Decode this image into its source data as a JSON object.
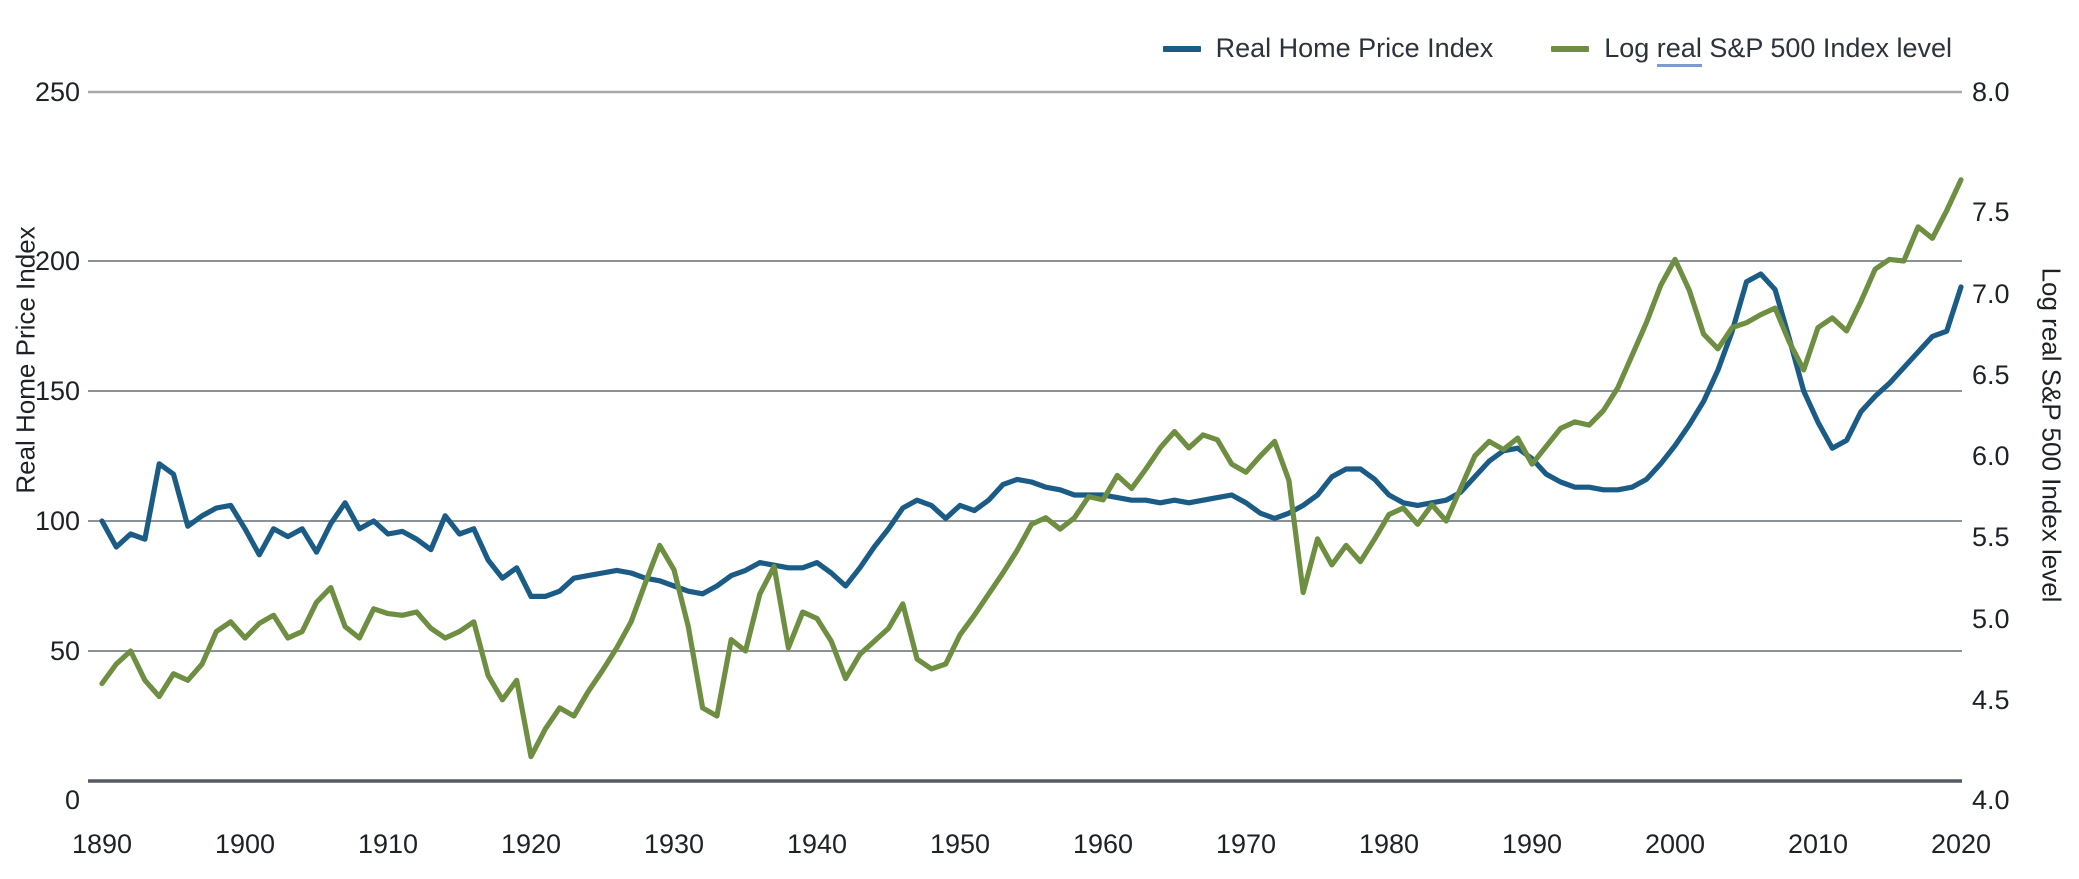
{
  "legend": {
    "series1_label": "Real Home Price Index",
    "series2_prefix": "Log ",
    "series2_underlined": "real",
    "series2_suffix": " S&P 500 Index level"
  },
  "axes": {
    "left_title": "Real Home Price Index",
    "right_title": "Log real S&P 500 Index level",
    "left_ticks": [
      "250",
      "200",
      "150",
      "100",
      "50",
      "0"
    ],
    "right_ticks": [
      "8.0",
      "7.5",
      "7.0",
      "6.5",
      "6.0",
      "5.5",
      "5.0",
      "4.5",
      "4.0"
    ],
    "x_ticks": [
      "1890",
      "1900",
      "1910",
      "1920",
      "1930",
      "1940",
      "1950",
      "1960",
      "1970",
      "1980",
      "1990",
      "2000",
      "2010",
      "2020"
    ]
  },
  "colors": {
    "home_price_line": "#1b5c87",
    "sp500_line": "#6e8f42",
    "gridline": "#8c9196",
    "top_border": "#a8a8a8",
    "axis_line": "#555b63",
    "tick_text": "#1e2227",
    "legend_text": "#2d333a",
    "underline": "#7f9ad1"
  },
  "chart_data": {
    "type": "line",
    "title": "",
    "xlabel": "",
    "x_range": {
      "start": 1890,
      "end": 2020,
      "step": 1
    },
    "x_tick_years": [
      1890,
      1900,
      1910,
      1920,
      1930,
      1940,
      1950,
      1960,
      1970,
      1980,
      1990,
      2000,
      2010,
      2020
    ],
    "left_axis": {
      "label": "Real Home Price Index",
      "ylim": [
        0,
        250
      ],
      "tick_step": 50
    },
    "right_axis": {
      "label": "Log real S&P 500 Index level",
      "ylim": [
        4.0,
        8.0
      ],
      "tick_step": 0.5
    },
    "grid": "horizontal",
    "legend_position": "top-right",
    "series": [
      {
        "name": "Real Home Price Index",
        "axis": "left",
        "color": "#1b5c87",
        "values": [
          100,
          90,
          95,
          93,
          122,
          118,
          98,
          102,
          105,
          106,
          97,
          87,
          97,
          94,
          97,
          88,
          99,
          107,
          97,
          100,
          95,
          96,
          93,
          89,
          102,
          95,
          97,
          85,
          78,
          82,
          71,
          71,
          73,
          78,
          79,
          80,
          81,
          80,
          78,
          77,
          75,
          73,
          72,
          75,
          79,
          81,
          84,
          83,
          82,
          82,
          84,
          80,
          75,
          82,
          90,
          97,
          105,
          108,
          106,
          101,
          106,
          104,
          108,
          114,
          116,
          115,
          113,
          112,
          110,
          110,
          110,
          109,
          108,
          108,
          107,
          108,
          107,
          108,
          109,
          110,
          107,
          103,
          101,
          103,
          106,
          110,
          117,
          120,
          120,
          116,
          110,
          107,
          106,
          107,
          108,
          111,
          117,
          123,
          127,
          128,
          124,
          118,
          115,
          113,
          113,
          112,
          112,
          113,
          116,
          122,
          129,
          137,
          146,
          158,
          173,
          192,
          195,
          189,
          170,
          150,
          138,
          128,
          131,
          142,
          148,
          153,
          159,
          165,
          171,
          173,
          190
        ]
      },
      {
        "name": "Log real S&P 500 Index level",
        "axis": "right",
        "color": "#6e8f42",
        "values": [
          4.6,
          4.72,
          4.8,
          4.62,
          4.52,
          4.66,
          4.62,
          4.72,
          4.92,
          4.98,
          4.88,
          4.97,
          5.02,
          4.88,
          4.92,
          5.1,
          5.19,
          4.95,
          4.88,
          5.06,
          5.03,
          5.02,
          5.04,
          4.94,
          4.88,
          4.92,
          4.98,
          4.65,
          4.5,
          4.62,
          4.15,
          4.32,
          4.45,
          4.4,
          4.55,
          4.68,
          4.82,
          4.98,
          5.22,
          5.45,
          5.3,
          4.95,
          4.45,
          4.4,
          4.87,
          4.8,
          5.15,
          5.32,
          4.82,
          5.04,
          5.0,
          4.86,
          4.63,
          4.78,
          4.86,
          4.94,
          5.09,
          4.75,
          4.69,
          4.72,
          4.9,
          5.02,
          5.15,
          5.28,
          5.42,
          5.58,
          5.62,
          5.55,
          5.62,
          5.75,
          5.73,
          5.88,
          5.8,
          5.92,
          6.05,
          6.15,
          6.05,
          6.13,
          6.1,
          5.95,
          5.9,
          6.0,
          6.09,
          5.85,
          5.16,
          5.49,
          5.33,
          5.45,
          5.35,
          5.49,
          5.64,
          5.68,
          5.58,
          5.7,
          5.6,
          5.8,
          6.0,
          6.09,
          6.04,
          6.11,
          5.95,
          6.06,
          6.17,
          6.21,
          6.19,
          6.28,
          6.42,
          6.62,
          6.82,
          7.05,
          7.21,
          7.02,
          6.75,
          6.66,
          6.79,
          6.82,
          6.87,
          6.91,
          6.7,
          6.53,
          6.79,
          6.85,
          6.77,
          6.95,
          7.15,
          7.21,
          7.2,
          7.41,
          7.34,
          7.51,
          7.7
        ]
      }
    ]
  }
}
